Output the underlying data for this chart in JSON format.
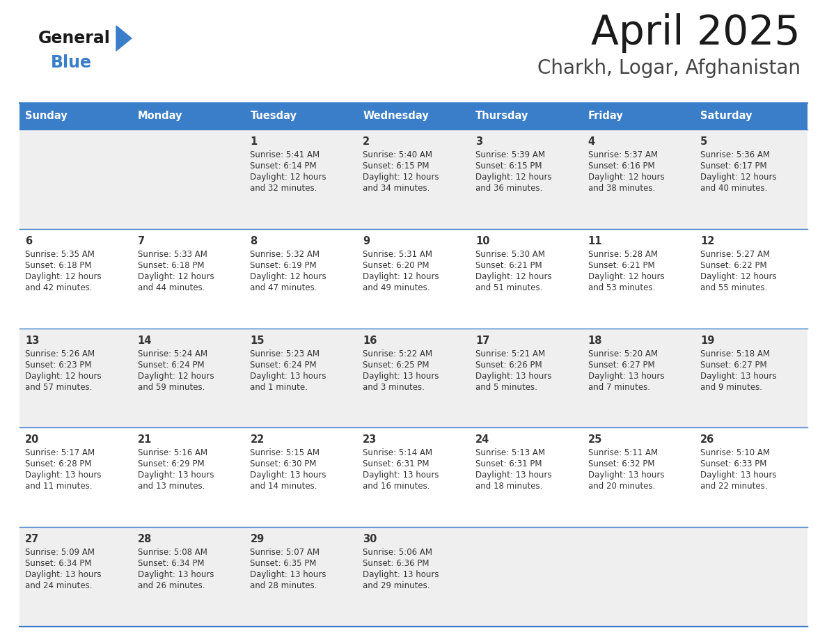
{
  "title": "April 2025",
  "subtitle": "Charkh, Logar, Afghanistan",
  "header_bg": "#3A7DC9",
  "header_text_color": "#FFFFFF",
  "cell_bg_row0": "#EFEFEF",
  "cell_bg_row1": "#FFFFFF",
  "separator_color": "#3A7DC9",
  "text_color": "#333333",
  "day_headers": [
    "Sunday",
    "Monday",
    "Tuesday",
    "Wednesday",
    "Thursday",
    "Friday",
    "Saturday"
  ],
  "logo_general_color": "#1a1a1a",
  "logo_blue_color": "#3A7DC9",
  "title_color": "#1a1a1a",
  "subtitle_color": "#444444",
  "calendar_data": [
    [
      {
        "day": "",
        "sunrise": "",
        "sunset": "",
        "daylight": ""
      },
      {
        "day": "",
        "sunrise": "",
        "sunset": "",
        "daylight": ""
      },
      {
        "day": "1",
        "sunrise": "Sunrise: 5:41 AM",
        "sunset": "Sunset: 6:14 PM",
        "daylight": "Daylight: 12 hours\nand 32 minutes."
      },
      {
        "day": "2",
        "sunrise": "Sunrise: 5:40 AM",
        "sunset": "Sunset: 6:15 PM",
        "daylight": "Daylight: 12 hours\nand 34 minutes."
      },
      {
        "day": "3",
        "sunrise": "Sunrise: 5:39 AM",
        "sunset": "Sunset: 6:15 PM",
        "daylight": "Daylight: 12 hours\nand 36 minutes."
      },
      {
        "day": "4",
        "sunrise": "Sunrise: 5:37 AM",
        "sunset": "Sunset: 6:16 PM",
        "daylight": "Daylight: 12 hours\nand 38 minutes."
      },
      {
        "day": "5",
        "sunrise": "Sunrise: 5:36 AM",
        "sunset": "Sunset: 6:17 PM",
        "daylight": "Daylight: 12 hours\nand 40 minutes."
      }
    ],
    [
      {
        "day": "6",
        "sunrise": "Sunrise: 5:35 AM",
        "sunset": "Sunset: 6:18 PM",
        "daylight": "Daylight: 12 hours\nand 42 minutes."
      },
      {
        "day": "7",
        "sunrise": "Sunrise: 5:33 AM",
        "sunset": "Sunset: 6:18 PM",
        "daylight": "Daylight: 12 hours\nand 44 minutes."
      },
      {
        "day": "8",
        "sunrise": "Sunrise: 5:32 AM",
        "sunset": "Sunset: 6:19 PM",
        "daylight": "Daylight: 12 hours\nand 47 minutes."
      },
      {
        "day": "9",
        "sunrise": "Sunrise: 5:31 AM",
        "sunset": "Sunset: 6:20 PM",
        "daylight": "Daylight: 12 hours\nand 49 minutes."
      },
      {
        "day": "10",
        "sunrise": "Sunrise: 5:30 AM",
        "sunset": "Sunset: 6:21 PM",
        "daylight": "Daylight: 12 hours\nand 51 minutes."
      },
      {
        "day": "11",
        "sunrise": "Sunrise: 5:28 AM",
        "sunset": "Sunset: 6:21 PM",
        "daylight": "Daylight: 12 hours\nand 53 minutes."
      },
      {
        "day": "12",
        "sunrise": "Sunrise: 5:27 AM",
        "sunset": "Sunset: 6:22 PM",
        "daylight": "Daylight: 12 hours\nand 55 minutes."
      }
    ],
    [
      {
        "day": "13",
        "sunrise": "Sunrise: 5:26 AM",
        "sunset": "Sunset: 6:23 PM",
        "daylight": "Daylight: 12 hours\nand 57 minutes."
      },
      {
        "day": "14",
        "sunrise": "Sunrise: 5:24 AM",
        "sunset": "Sunset: 6:24 PM",
        "daylight": "Daylight: 12 hours\nand 59 minutes."
      },
      {
        "day": "15",
        "sunrise": "Sunrise: 5:23 AM",
        "sunset": "Sunset: 6:24 PM",
        "daylight": "Daylight: 13 hours\nand 1 minute."
      },
      {
        "day": "16",
        "sunrise": "Sunrise: 5:22 AM",
        "sunset": "Sunset: 6:25 PM",
        "daylight": "Daylight: 13 hours\nand 3 minutes."
      },
      {
        "day": "17",
        "sunrise": "Sunrise: 5:21 AM",
        "sunset": "Sunset: 6:26 PM",
        "daylight": "Daylight: 13 hours\nand 5 minutes."
      },
      {
        "day": "18",
        "sunrise": "Sunrise: 5:20 AM",
        "sunset": "Sunset: 6:27 PM",
        "daylight": "Daylight: 13 hours\nand 7 minutes."
      },
      {
        "day": "19",
        "sunrise": "Sunrise: 5:18 AM",
        "sunset": "Sunset: 6:27 PM",
        "daylight": "Daylight: 13 hours\nand 9 minutes."
      }
    ],
    [
      {
        "day": "20",
        "sunrise": "Sunrise: 5:17 AM",
        "sunset": "Sunset: 6:28 PM",
        "daylight": "Daylight: 13 hours\nand 11 minutes."
      },
      {
        "day": "21",
        "sunrise": "Sunrise: 5:16 AM",
        "sunset": "Sunset: 6:29 PM",
        "daylight": "Daylight: 13 hours\nand 13 minutes."
      },
      {
        "day": "22",
        "sunrise": "Sunrise: 5:15 AM",
        "sunset": "Sunset: 6:30 PM",
        "daylight": "Daylight: 13 hours\nand 14 minutes."
      },
      {
        "day": "23",
        "sunrise": "Sunrise: 5:14 AM",
        "sunset": "Sunset: 6:31 PM",
        "daylight": "Daylight: 13 hours\nand 16 minutes."
      },
      {
        "day": "24",
        "sunrise": "Sunrise: 5:13 AM",
        "sunset": "Sunset: 6:31 PM",
        "daylight": "Daylight: 13 hours\nand 18 minutes."
      },
      {
        "day": "25",
        "sunrise": "Sunrise: 5:11 AM",
        "sunset": "Sunset: 6:32 PM",
        "daylight": "Daylight: 13 hours\nand 20 minutes."
      },
      {
        "day": "26",
        "sunrise": "Sunrise: 5:10 AM",
        "sunset": "Sunset: 6:33 PM",
        "daylight": "Daylight: 13 hours\nand 22 minutes."
      }
    ],
    [
      {
        "day": "27",
        "sunrise": "Sunrise: 5:09 AM",
        "sunset": "Sunset: 6:34 PM",
        "daylight": "Daylight: 13 hours\nand 24 minutes."
      },
      {
        "day": "28",
        "sunrise": "Sunrise: 5:08 AM",
        "sunset": "Sunset: 6:34 PM",
        "daylight": "Daylight: 13 hours\nand 26 minutes."
      },
      {
        "day": "29",
        "sunrise": "Sunrise: 5:07 AM",
        "sunset": "Sunset: 6:35 PM",
        "daylight": "Daylight: 13 hours\nand 28 minutes."
      },
      {
        "day": "30",
        "sunrise": "Sunrise: 5:06 AM",
        "sunset": "Sunset: 6:36 PM",
        "daylight": "Daylight: 13 hours\nand 29 minutes."
      },
      {
        "day": "",
        "sunrise": "",
        "sunset": "",
        "daylight": ""
      },
      {
        "day": "",
        "sunrise": "",
        "sunset": "",
        "daylight": ""
      },
      {
        "day": "",
        "sunrise": "",
        "sunset": "",
        "daylight": ""
      }
    ]
  ]
}
